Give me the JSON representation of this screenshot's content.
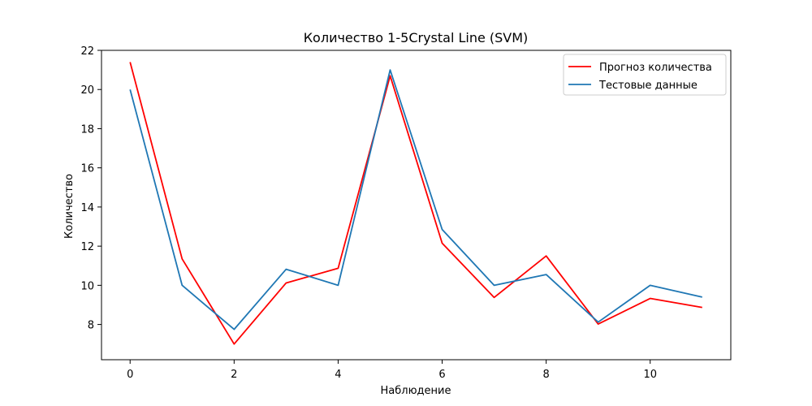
{
  "chart_data": {
    "type": "line",
    "title": "Количество 1-5Crystal Line (SVM)",
    "xlabel": "Наблюдение",
    "ylabel": "Количество",
    "xlim": [
      -0.55,
      11.55
    ],
    "ylim": [
      6.2,
      22.0
    ],
    "x_ticks": [
      0,
      2,
      4,
      6,
      8,
      10
    ],
    "y_ticks": [
      8,
      10,
      12,
      14,
      16,
      18,
      20,
      22
    ],
    "x": [
      0,
      1,
      2,
      3,
      4,
      5,
      6,
      7,
      8,
      9,
      10,
      11
    ],
    "series": [
      {
        "name": "Прогноз количества",
        "color": "#ff0000",
        "values": [
          21.4,
          11.35,
          7.0,
          10.12,
          10.87,
          20.7,
          12.15,
          9.38,
          11.5,
          8.02,
          9.33,
          8.87
        ]
      },
      {
        "name": "Тестовые данные",
        "color": "#1f77b4",
        "values": [
          20.0,
          10.0,
          7.75,
          10.82,
          10.0,
          21.0,
          12.85,
          10.0,
          10.55,
          8.12,
          10.0,
          9.4
        ]
      }
    ],
    "legend_position": "top-right",
    "grid": false
  }
}
